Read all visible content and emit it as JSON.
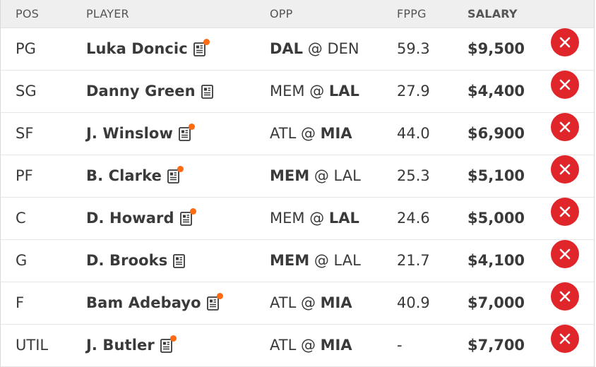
{
  "columns": {
    "pos": "POS",
    "player": "PLAYER",
    "opp": "OPP",
    "fppg": "FPPG",
    "salary": "SALARY"
  },
  "rows": [
    {
      "pos": "PG",
      "player": "Luka Doncic",
      "has_news_alert": true,
      "away": "DAL",
      "at": "@",
      "home": "DEN",
      "bold": "away",
      "fppg": "59.3",
      "salary": "$9,500"
    },
    {
      "pos": "SG",
      "player": "Danny Green",
      "has_news_alert": false,
      "away": "MEM",
      "at": "@",
      "home": "LAL",
      "bold": "home",
      "fppg": "27.9",
      "salary": "$4,400"
    },
    {
      "pos": "SF",
      "player": "J. Winslow",
      "has_news_alert": true,
      "away": "ATL",
      "at": "@",
      "home": "MIA",
      "bold": "home",
      "fppg": "44.0",
      "salary": "$6,900"
    },
    {
      "pos": "PF",
      "player": "B. Clarke",
      "has_news_alert": true,
      "away": "MEM",
      "at": "@",
      "home": "LAL",
      "bold": "away",
      "fppg": "25.3",
      "salary": "$5,100"
    },
    {
      "pos": "C",
      "player": "D. Howard",
      "has_news_alert": true,
      "away": "MEM",
      "at": "@",
      "home": "LAL",
      "bold": "home",
      "fppg": "24.6",
      "salary": "$5,000"
    },
    {
      "pos": "G",
      "player": "D. Brooks",
      "has_news_alert": false,
      "away": "MEM",
      "at": "@",
      "home": "LAL",
      "bold": "away",
      "fppg": "21.7",
      "salary": "$4,100"
    },
    {
      "pos": "F",
      "player": "Bam Adebayo",
      "has_news_alert": true,
      "away": "ATL",
      "at": "@",
      "home": "MIA",
      "bold": "home",
      "fppg": "40.9",
      "salary": "$7,000"
    },
    {
      "pos": "UTIL",
      "player": "J. Butler",
      "has_news_alert": true,
      "away": "ATL",
      "at": "@",
      "home": "MIA",
      "bold": "home",
      "fppg": "-",
      "salary": "$7,700"
    }
  ],
  "icons": {
    "news": "player-news-icon",
    "alert": "news-alert-dot",
    "remove": "remove-player-icon"
  },
  "colors": {
    "header_bg": "#efefef",
    "remove_red": "#e0262a",
    "alert_orange": "#ff6a13",
    "text": "#3a3a3a"
  }
}
